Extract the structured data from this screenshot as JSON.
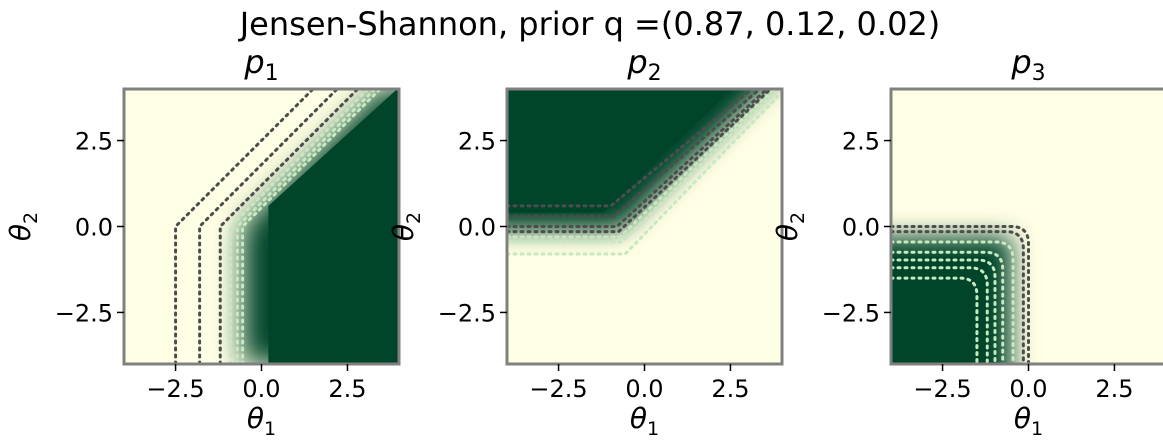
{
  "chart_data": {
    "type": "heatmap",
    "title": "Jensen-Shannon, prior q =(0.87, 0.12, 0.02)",
    "colormap": "Greens",
    "colors": {
      "low": "#ffffe5",
      "mid": "#78c679",
      "high": "#004529",
      "contour_light": "#c7e9c0",
      "contour_dark": "#4d4d4d",
      "frame": "#808080"
    },
    "panels": [
      {
        "title_base": "p",
        "title_sub": "1",
        "xlabel_base": "θ",
        "xlabel_sub": "1",
        "ylabel_base": "θ",
        "ylabel_sub": "2",
        "xlim": [
          -4,
          4
        ],
        "ylim": [
          -4,
          4
        ],
        "xticks": [
          -2.5,
          0.0,
          2.5
        ],
        "xtick_labels": [
          "−2.5",
          "0.0",
          "2.5"
        ],
        "yticks": [
          2.5,
          0.0,
          -2.5
        ],
        "ytick_labels": [
          "2.5",
          "0.0",
          "−2.5"
        ],
        "region": "high where θ2 < θ1 + c (right of a diagonal boundary), bounded on the left near θ1 ≈ -1",
        "contour_offsets": [
          -2.5,
          -1.8,
          -1.2,
          -0.9,
          -0.7,
          -0.55
        ]
      },
      {
        "title_base": "p",
        "title_sub": "2",
        "xlabel_base": "θ",
        "xlabel_sub": "1",
        "ylabel_base": "θ",
        "ylabel_sub": "2",
        "xlim": [
          -4,
          4
        ],
        "ylim": [
          -4,
          4
        ],
        "xticks": [
          -2.5,
          0.0,
          2.5
        ],
        "xtick_labels": [
          "−2.5",
          "0.0",
          "2.5"
        ],
        "yticks": [
          2.5,
          0.0,
          -2.5
        ],
        "ytick_labels": [
          "2.5",
          "0.0",
          "−2.5"
        ],
        "region": "high where θ2 > θ1 and θ2 > 0 (upper-left)",
        "contour_offsets": [
          0.8,
          0.45,
          0.3,
          0.15,
          0.0,
          -0.3,
          -0.6
        ]
      },
      {
        "title_base": "p",
        "title_sub": "3",
        "xlabel_base": "θ",
        "xlabel_sub": "1",
        "ylabel_base": "θ",
        "ylabel_sub": "2",
        "xlim": [
          -4,
          4
        ],
        "ylim": [
          -4,
          4
        ],
        "xticks": [
          -2.5,
          0.0,
          2.5
        ],
        "xtick_labels": [
          "−2.5",
          "0.0",
          "2.5"
        ],
        "yticks": [
          2.5,
          0.0,
          -2.5
        ],
        "ytick_labels": [
          "2.5",
          "0.0",
          "−2.5"
        ],
        "region": "high where θ1 < 0 and θ2 < 0 (lower-left quadrant)",
        "contour_offsets": [
          1.0,
          0.8,
          0.65,
          0.5,
          0.3,
          0.1,
          0.0
        ]
      }
    ]
  }
}
